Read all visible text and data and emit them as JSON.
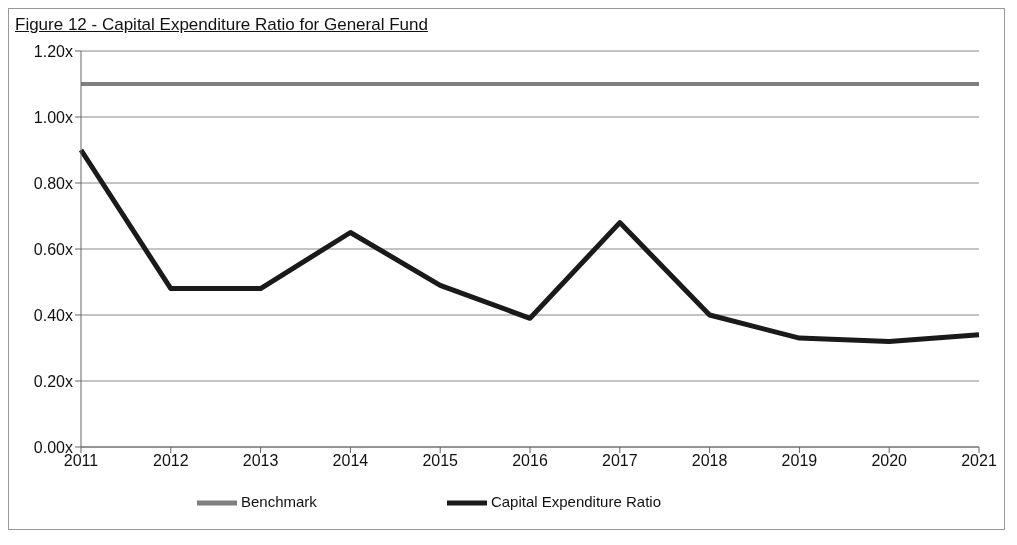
{
  "chart_data": {
    "type": "line",
    "title": "Figure 12 - Capital Expenditure Ratio for General Fund",
    "categories": [
      "2011",
      "2012",
      "2013",
      "2014",
      "2015",
      "2016",
      "2017",
      "2018",
      "2019",
      "2020",
      "2021"
    ],
    "series": [
      {
        "name": "Capital Expenditure Ratio",
        "color": "#1a1a1a",
        "values": [
          0.9,
          0.48,
          0.48,
          0.65,
          0.49,
          0.39,
          0.68,
          0.4,
          0.33,
          0.32,
          0.34
        ]
      },
      {
        "name": "Benchmark",
        "color": "#7f7f7f",
        "values": [
          1.1,
          1.1,
          1.1,
          1.1,
          1.1,
          1.1,
          1.1,
          1.1,
          1.1,
          1.1,
          1.1
        ]
      }
    ],
    "ylim": [
      0,
      1.2
    ],
    "yticks": [
      {
        "value": 0,
        "label": "0.00x"
      },
      {
        "value": 0.2,
        "label": "0.20x"
      },
      {
        "value": 0.4,
        "label": "0.40x"
      },
      {
        "value": 0.6,
        "label": "0.60x"
      },
      {
        "value": 0.8,
        "label": "0.80x"
      },
      {
        "value": 1.0,
        "label": "1.00x"
      },
      {
        "value": 1.2,
        "label": "1.20x"
      }
    ],
    "grid": "y",
    "legend": "bottom",
    "marker": "none",
    "line_style": "solid"
  }
}
